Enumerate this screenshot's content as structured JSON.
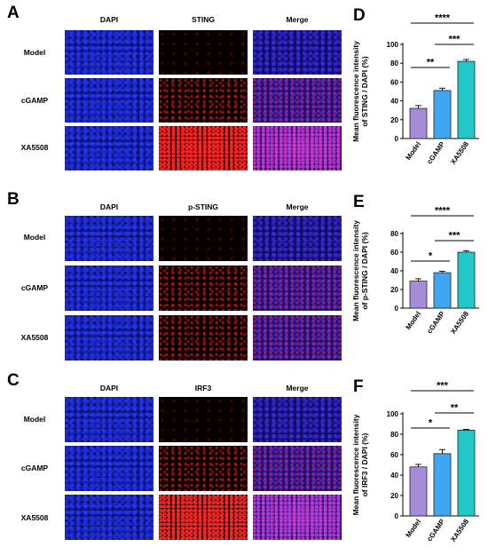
{
  "micrograph_panels": [
    {
      "letter": "A",
      "columns": [
        "DAPI",
        "STING",
        "Merge"
      ],
      "rows": [
        "Model",
        "cGAMP",
        "XA5508"
      ],
      "signal_level": [
        "low",
        "mid",
        "high"
      ]
    },
    {
      "letter": "B",
      "columns": [
        "DAPI",
        "p-STING",
        "Merge"
      ],
      "rows": [
        "Model",
        "cGAMP",
        "XA5508"
      ],
      "signal_level": [
        "low",
        "mid",
        "mid"
      ]
    },
    {
      "letter": "C",
      "columns": [
        "DAPI",
        "IRF3",
        "Merge"
      ],
      "rows": [
        "Model",
        "cGAMP",
        "XA5508"
      ],
      "signal_level": [
        "low",
        "mid",
        "high"
      ]
    }
  ],
  "chart_data": [
    {
      "type": "bar",
      "letter": "D",
      "ylabel": [
        "Mean fluorescence intensity",
        "of STING / DAPI (%)"
      ],
      "categories": [
        "Model",
        "cGAMP",
        "XA5508"
      ],
      "values": [
        32,
        51,
        82
      ],
      "errors": [
        3,
        2.5,
        2
      ],
      "ylim": [
        0,
        100
      ],
      "yticks": [
        0,
        20,
        40,
        60,
        80,
        100
      ],
      "colors": [
        "#a78bd8",
        "#3ea6f2",
        "#22c7c7"
      ],
      "significance": [
        {
          "from": 0,
          "to": 1,
          "label": "**"
        },
        {
          "from": 1,
          "to": 2,
          "label": "***"
        },
        {
          "from": 0,
          "to": 2,
          "label": "****"
        }
      ]
    },
    {
      "type": "bar",
      "letter": "E",
      "ylabel": [
        "Mean fluorescence intensity",
        "of p-STING / DAPI (%)"
      ],
      "categories": [
        "Model",
        "cGAMP",
        "XA5508"
      ],
      "values": [
        29,
        38,
        60
      ],
      "errors": [
        2.5,
        1.5,
        1.5
      ],
      "ylim": [
        0,
        80
      ],
      "yticks": [
        0,
        20,
        40,
        60,
        80
      ],
      "colors": [
        "#a78bd8",
        "#3ea6f2",
        "#22c7c7"
      ],
      "significance": [
        {
          "from": 0,
          "to": 1,
          "label": "*"
        },
        {
          "from": 1,
          "to": 2,
          "label": "***"
        },
        {
          "from": 0,
          "to": 2,
          "label": "****"
        }
      ]
    },
    {
      "type": "bar",
      "letter": "F",
      "ylabel": [
        "Mean fluorescence intensity",
        "of IRF3 / DAPI (%)"
      ],
      "categories": [
        "Model",
        "cGAMP",
        "XA5508"
      ],
      "values": [
        48,
        61,
        84
      ],
      "errors": [
        2.5,
        4,
        0.8
      ],
      "ylim": [
        0,
        100
      ],
      "yticks": [
        0,
        20,
        40,
        60,
        80,
        100
      ],
      "colors": [
        "#a78bd8",
        "#3ea6f2",
        "#22c7c7"
      ],
      "significance": [
        {
          "from": 0,
          "to": 1,
          "label": "*"
        },
        {
          "from": 1,
          "to": 2,
          "label": "**"
        },
        {
          "from": 0,
          "to": 2,
          "label": "***"
        }
      ]
    }
  ]
}
